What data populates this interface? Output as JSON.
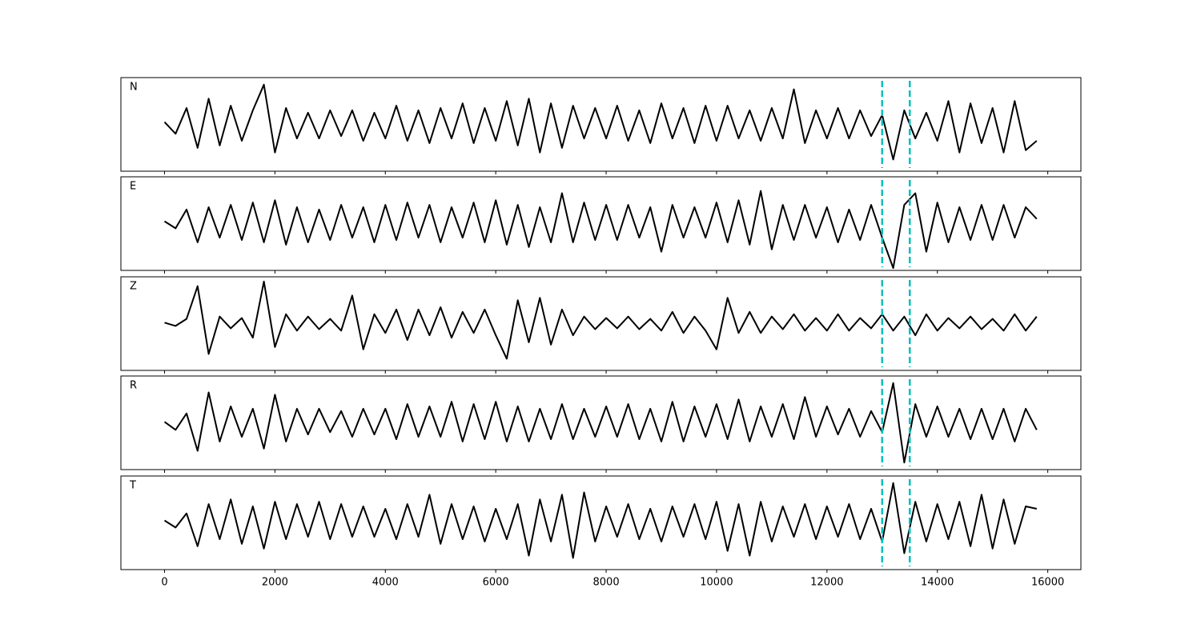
{
  "chart_data": [
    {
      "type": "line",
      "label": "N",
      "color": "#000000",
      "xlim": [
        -790,
        16600
      ],
      "ylim": [
        -1,
        1
      ],
      "xticks": [
        0,
        2000,
        4000,
        6000,
        8000,
        10000,
        12000,
        14000,
        16000
      ],
      "markers": [
        13000,
        13500
      ],
      "marker_color": "#00bfbf",
      "x": [
        0,
        200,
        400,
        600,
        800,
        1000,
        1200,
        1400,
        1600,
        1800,
        2000,
        2200,
        2400,
        2600,
        2800,
        3000,
        3200,
        3400,
        3600,
        3800,
        4000,
        4200,
        4400,
        4600,
        4800,
        5000,
        5200,
        5400,
        5600,
        5800,
        6000,
        6200,
        6400,
        6600,
        6800,
        7000,
        7200,
        7400,
        7600,
        7800,
        8000,
        8200,
        8400,
        8600,
        8800,
        9000,
        9200,
        9400,
        9600,
        9800,
        10000,
        10200,
        10400,
        10600,
        10800,
        11000,
        11200,
        11400,
        11600,
        11800,
        12000,
        12200,
        12400,
        12600,
        12800,
        13000,
        13200,
        13400,
        13600,
        13800,
        14000,
        14200,
        14400,
        14600,
        14800,
        15000,
        15200,
        15400,
        15600,
        15800
      ],
      "values": [
        0.05,
        -0.2,
        0.35,
        -0.5,
        0.55,
        -0.45,
        0.4,
        -0.35,
        0.3,
        0.85,
        -0.6,
        0.35,
        -0.3,
        0.25,
        -0.3,
        0.3,
        -0.25,
        0.3,
        -0.35,
        0.25,
        -0.3,
        0.4,
        -0.35,
        0.3,
        -0.4,
        0.35,
        -0.3,
        0.45,
        -0.4,
        0.35,
        -0.35,
        0.5,
        -0.45,
        0.55,
        -0.6,
        0.45,
        -0.5,
        0.4,
        -0.3,
        0.35,
        -0.3,
        0.4,
        -0.35,
        0.3,
        -0.4,
        0.45,
        -0.3,
        0.35,
        -0.4,
        0.4,
        -0.35,
        0.4,
        -0.3,
        0.3,
        -0.35,
        0.35,
        -0.3,
        0.75,
        -0.4,
        0.3,
        -0.3,
        0.35,
        -0.3,
        0.3,
        -0.25,
        0.2,
        -0.75,
        0.3,
        -0.3,
        0.25,
        -0.35,
        0.5,
        -0.6,
        0.45,
        -0.4,
        0.35,
        -0.6,
        0.5,
        -0.55,
        -0.35
      ]
    },
    {
      "type": "line",
      "label": "E",
      "color": "#000000",
      "xlim": [
        -790,
        16600
      ],
      "ylim": [
        -1,
        1
      ],
      "xticks": [
        0,
        2000,
        4000,
        6000,
        8000,
        10000,
        12000,
        14000,
        16000
      ],
      "markers": [
        13000,
        13500
      ],
      "marker_color": "#00bfbf",
      "x": [
        0,
        200,
        400,
        600,
        800,
        1000,
        1200,
        1400,
        1600,
        1800,
        2000,
        2200,
        2400,
        2600,
        2800,
        3000,
        3200,
        3400,
        3600,
        3800,
        4000,
        4200,
        4400,
        4600,
        4800,
        5000,
        5200,
        5400,
        5600,
        5800,
        6000,
        6200,
        6400,
        6600,
        6800,
        7000,
        7200,
        7400,
        7600,
        7800,
        8000,
        8200,
        8400,
        8600,
        8800,
        9000,
        9200,
        9400,
        9600,
        9800,
        10000,
        10200,
        10400,
        10600,
        10800,
        11000,
        11200,
        11400,
        11600,
        11800,
        12000,
        12200,
        12400,
        12600,
        12800,
        13000,
        13200,
        13400,
        13600,
        13800,
        14000,
        14200,
        14400,
        14600,
        14800,
        15000,
        15200,
        15400,
        15600,
        15800
      ],
      "values": [
        0.05,
        -0.1,
        0.3,
        -0.4,
        0.35,
        -0.3,
        0.4,
        -0.35,
        0.45,
        -0.4,
        0.5,
        -0.45,
        0.35,
        -0.4,
        0.3,
        -0.35,
        0.4,
        -0.3,
        0.35,
        -0.4,
        0.4,
        -0.35,
        0.45,
        -0.3,
        0.4,
        -0.4,
        0.35,
        -0.3,
        0.45,
        -0.4,
        0.5,
        -0.45,
        0.4,
        -0.5,
        0.35,
        -0.4,
        0.65,
        -0.4,
        0.45,
        -0.35,
        0.4,
        -0.35,
        0.4,
        -0.3,
        0.35,
        -0.6,
        0.4,
        -0.3,
        0.35,
        -0.3,
        0.45,
        -0.4,
        0.5,
        -0.45,
        0.7,
        -0.55,
        0.4,
        -0.35,
        0.4,
        -0.3,
        0.35,
        -0.4,
        0.3,
        -0.35,
        0.4,
        -0.3,
        -0.95,
        0.4,
        0.65,
        -0.6,
        0.45,
        -0.4,
        0.35,
        -0.35,
        0.4,
        -0.35,
        0.4,
        -0.3,
        0.35,
        0.1
      ]
    },
    {
      "type": "line",
      "label": "Z",
      "color": "#000000",
      "xlim": [
        -790,
        16600
      ],
      "ylim": [
        -1,
        1
      ],
      "xticks": [
        0,
        2000,
        4000,
        6000,
        8000,
        10000,
        12000,
        14000,
        16000
      ],
      "markers": [
        13000,
        13500
      ],
      "marker_color": "#00bfbf",
      "x": [
        0,
        200,
        400,
        600,
        800,
        1000,
        1200,
        1400,
        1600,
        1800,
        2000,
        2200,
        2400,
        2600,
        2800,
        3000,
        3200,
        3400,
        3600,
        3800,
        4000,
        4200,
        4400,
        4600,
        4800,
        5000,
        5200,
        5400,
        5600,
        5800,
        6000,
        6200,
        6400,
        6600,
        6800,
        7000,
        7200,
        7400,
        7600,
        7800,
        8000,
        8200,
        8400,
        8600,
        8800,
        9000,
        9200,
        9400,
        9600,
        9800,
        10000,
        10200,
        10400,
        10600,
        10800,
        11000,
        11200,
        11400,
        11600,
        11800,
        12000,
        12200,
        12400,
        12600,
        12800,
        13000,
        13200,
        13400,
        13600,
        13800,
        14000,
        14200,
        14400,
        14600,
        14800,
        15000,
        15200,
        15400,
        15600,
        15800
      ],
      "values": [
        0.02,
        -0.05,
        0.1,
        0.8,
        -0.65,
        0.15,
        -0.1,
        0.12,
        -0.3,
        0.9,
        -0.5,
        0.2,
        -0.15,
        0.15,
        -0.12,
        0.1,
        -0.15,
        0.6,
        -0.55,
        0.2,
        -0.2,
        0.3,
        -0.35,
        0.3,
        -0.25,
        0.35,
        -0.3,
        0.25,
        -0.2,
        0.3,
        -0.25,
        -0.75,
        0.5,
        -0.4,
        0.55,
        -0.45,
        0.3,
        -0.25,
        0.15,
        -0.12,
        0.12,
        -0.1,
        0.15,
        -0.12,
        0.1,
        -0.15,
        0.25,
        -0.2,
        0.15,
        -0.15,
        -0.55,
        0.55,
        -0.2,
        0.25,
        -0.2,
        0.15,
        -0.12,
        0.2,
        -0.15,
        0.12,
        -0.15,
        0.2,
        -0.15,
        0.12,
        -0.1,
        0.2,
        -0.15,
        0.15,
        -0.25,
        0.2,
        -0.15,
        0.12,
        -0.1,
        0.15,
        -0.12,
        0.1,
        -0.15,
        0.2,
        -0.15,
        0.15
      ]
    },
    {
      "type": "line",
      "label": "R",
      "color": "#000000",
      "xlim": [
        -790,
        16600
      ],
      "ylim": [
        -1,
        1
      ],
      "xticks": [
        0,
        2000,
        4000,
        6000,
        8000,
        10000,
        12000,
        14000,
        16000
      ],
      "markers": [
        13000,
        13500
      ],
      "marker_color": "#00bfbf",
      "x": [
        0,
        200,
        400,
        600,
        800,
        1000,
        1200,
        1400,
        1600,
        1800,
        2000,
        2200,
        2400,
        2600,
        2800,
        3000,
        3200,
        3400,
        3600,
        3800,
        4000,
        4200,
        4400,
        4600,
        4800,
        5000,
        5200,
        5400,
        5600,
        5800,
        6000,
        6200,
        6400,
        6600,
        6800,
        7000,
        7200,
        7400,
        7600,
        7800,
        8000,
        8200,
        8400,
        8600,
        8800,
        9000,
        9200,
        9400,
        9600,
        9800,
        10000,
        10200,
        10400,
        10600,
        10800,
        11000,
        11200,
        11400,
        11600,
        11800,
        12000,
        12200,
        12400,
        12600,
        12800,
        13000,
        13200,
        13400,
        13600,
        13800,
        14000,
        14200,
        14400,
        14600,
        14800,
        15000,
        15200,
        15400,
        15600,
        15800
      ],
      "values": [
        0.02,
        -0.15,
        0.2,
        -0.6,
        0.65,
        -0.4,
        0.35,
        -0.3,
        0.3,
        -0.55,
        0.6,
        -0.4,
        0.3,
        -0.25,
        0.3,
        -0.2,
        0.25,
        -0.3,
        0.3,
        -0.25,
        0.3,
        -0.35,
        0.4,
        -0.3,
        0.35,
        -0.3,
        0.45,
        -0.4,
        0.4,
        -0.35,
        0.45,
        -0.4,
        0.35,
        -0.4,
        0.3,
        -0.35,
        0.4,
        -0.35,
        0.3,
        -0.3,
        0.35,
        -0.3,
        0.4,
        -0.35,
        0.3,
        -0.4,
        0.45,
        -0.4,
        0.35,
        -0.3,
        0.4,
        -0.35,
        0.5,
        -0.4,
        0.35,
        -0.3,
        0.4,
        -0.35,
        0.55,
        -0.3,
        0.35,
        -0.25,
        0.3,
        -0.3,
        0.25,
        -0.2,
        0.85,
        -0.85,
        0.4,
        -0.3,
        0.35,
        -0.3,
        0.3,
        -0.35,
        0.3,
        -0.35,
        0.3,
        -0.4,
        0.3,
        -0.15
      ]
    },
    {
      "type": "line",
      "label": "T",
      "color": "#000000",
      "xlim": [
        -790,
        16600
      ],
      "ylim": [
        -1,
        1
      ],
      "xticks": [
        0,
        2000,
        4000,
        6000,
        8000,
        10000,
        12000,
        14000,
        16000
      ],
      "markers": [
        13000,
        13500
      ],
      "marker_color": "#00bfbf",
      "x": [
        0,
        200,
        400,
        600,
        800,
        1000,
        1200,
        1400,
        1600,
        1800,
        2000,
        2200,
        2400,
        2600,
        2800,
        3000,
        3200,
        3400,
        3600,
        3800,
        4000,
        4200,
        4400,
        4600,
        4800,
        5000,
        5200,
        5400,
        5600,
        5800,
        6000,
        6200,
        6400,
        6600,
        6800,
        7000,
        7200,
        7400,
        7600,
        7800,
        8000,
        8200,
        8400,
        8600,
        8800,
        9000,
        9200,
        9400,
        9600,
        9800,
        10000,
        10200,
        10400,
        10600,
        10800,
        11000,
        11200,
        11400,
        11600,
        11800,
        12000,
        12200,
        12400,
        12600,
        12800,
        13000,
        13200,
        13400,
        13600,
        13800,
        14000,
        14200,
        14400,
        14600,
        14800,
        15000,
        15200,
        15400,
        15600,
        15800
      ],
      "values": [
        0.05,
        -0.1,
        0.2,
        -0.5,
        0.4,
        -0.35,
        0.5,
        -0.45,
        0.35,
        -0.55,
        0.45,
        -0.35,
        0.4,
        -0.3,
        0.45,
        -0.35,
        0.4,
        -0.3,
        0.35,
        -0.3,
        0.3,
        -0.35,
        0.4,
        -0.3,
        0.6,
        -0.45,
        0.4,
        -0.35,
        0.35,
        -0.4,
        0.3,
        -0.35,
        0.4,
        -0.7,
        0.5,
        -0.4,
        0.6,
        -0.75,
        0.65,
        -0.4,
        0.35,
        -0.3,
        0.4,
        -0.35,
        0.3,
        -0.4,
        0.35,
        -0.3,
        0.4,
        -0.35,
        0.45,
        -0.6,
        0.4,
        -0.7,
        0.45,
        -0.4,
        0.35,
        -0.3,
        0.4,
        -0.35,
        0.35,
        -0.3,
        0.4,
        -0.35,
        0.3,
        -0.4,
        0.85,
        -0.65,
        0.45,
        -0.4,
        0.4,
        -0.35,
        0.45,
        -0.5,
        0.6,
        -0.55,
        0.5,
        -0.45,
        0.35,
        0.3
      ]
    }
  ]
}
